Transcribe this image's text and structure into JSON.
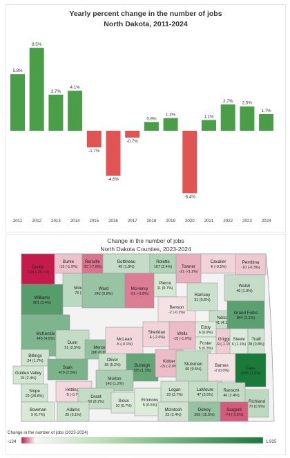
{
  "chart_data": [
    {
      "type": "bar",
      "title": "Yearly percent change in the number of jobs",
      "subtitle": "North Dakota, 2011-2024",
      "categories": [
        "2011",
        "2012",
        "2013",
        "2014",
        "2015",
        "2016",
        "2017",
        "2018",
        "2019",
        "2020",
        "2021",
        "2022",
        "2023",
        "2024"
      ],
      "values": [
        5.8,
        8.5,
        3.7,
        4.1,
        -1.7,
        -4.6,
        -0.7,
        0.9,
        1.3,
        -6.4,
        1.1,
        2.7,
        2.5,
        1.7
      ],
      "labels": [
        "5.8%",
        "8.5%",
        "3.7%",
        "4.1%",
        "-1.7%",
        "-4.6%",
        "-0.7%",
        "0.9%",
        "1.3%",
        "-6.4%",
        "1.1%",
        "2.7%",
        "2.5%",
        "1.7%"
      ],
      "ylim": [
        -7,
        9
      ],
      "colors": {
        "positive": "#4a9e47",
        "negative": "#e05454"
      }
    },
    {
      "type": "heatmap",
      "title": "Change in the number of jobs",
      "subtitle": "North Dakota Counties, 2023-2024",
      "legend": {
        "title": "Change in the number of jobs (2023-2024)",
        "min_label": "-124",
        "max_label": "1,925",
        "min": -124,
        "max": 1925
      },
      "counties": [
        {
          "name": "Divide",
          "value": -124,
          "label": "-124 (-15.1%)"
        },
        {
          "name": "Burke",
          "value": -13,
          "label": "-13 (-1.9%)"
        },
        {
          "name": "Renville",
          "value": -57,
          "label": "-57 (-7.8%)"
        },
        {
          "name": "Bottineau",
          "value": 45,
          "label": "45 (1.8%)"
        },
        {
          "name": "Rolette",
          "value": 107,
          "label": "107 (2.4%)"
        },
        {
          "name": "Towner",
          "value": -21,
          "label": "-21 (-3.1%)"
        },
        {
          "name": "Cavalier",
          "value": -6,
          "label": "-6 (-0.5%)"
        },
        {
          "name": "Pembina",
          "value": -10,
          "label": "-10 (-0.3%)"
        },
        {
          "name": "Williams",
          "value": 901,
          "label": "901 (3.4%)"
        },
        {
          "name": "Mountrail",
          "value": 75,
          "label": "75 (1.4%)"
        },
        {
          "name": "Ward",
          "value": 242,
          "label": "242 (0.8%)"
        },
        {
          "name": "McHenry",
          "value": -51,
          "label": "-51 (-3.8%)"
        },
        {
          "name": "Pierce",
          "value": 11,
          "label": "11 (0.7%)"
        },
        {
          "name": "Benson",
          "value": -2,
          "label": "-2 (-0.1%)"
        },
        {
          "name": "Ramsey",
          "value": 31,
          "label": "31 (0.6%)"
        },
        {
          "name": "Walsh",
          "value": 46,
          "label": "46 (1.0%)"
        },
        {
          "name": "Nelson",
          "value": 41,
          "label": "41 (4.1%)"
        },
        {
          "name": "Grand Forks",
          "value": 844,
          "label": "844 (2.1%)"
        },
        {
          "name": "McKenzie",
          "value": 445,
          "label": "445 (4.0%)"
        },
        {
          "name": "Dunn",
          "value": 51,
          "label": "51 (2.5%)"
        },
        {
          "name": "Mercer",
          "value": 286,
          "label": "286 (6.9%)"
        },
        {
          "name": "McLean",
          "value": -5,
          "label": "-5 (-0.1%)"
        },
        {
          "name": "Sheridan",
          "value": -6,
          "label": "-6 (-2.6%)"
        },
        {
          "name": "Wells",
          "value": -15,
          "label": "-15 (-1.0%)"
        },
        {
          "name": "Eddy",
          "value": 6,
          "label": "6 (0.9%)"
        },
        {
          "name": "Foster",
          "value": 5,
          "label": "5 (0.3%)"
        },
        {
          "name": "Griggs",
          "value": -9,
          "label": "-9 (-1.1%)"
        },
        {
          "name": "Steele",
          "value": 6,
          "label": "6 (1.1%)"
        },
        {
          "name": "Traill",
          "value": 28,
          "label": "28 (0.8%)"
        },
        {
          "name": "Billings",
          "value": 24,
          "label": "24 (1.7%)"
        },
        {
          "name": "Golden Valley",
          "value": 15,
          "label": "15 (2.4%)"
        },
        {
          "name": "Oliver",
          "value": 35,
          "label": "35 (5.2%)"
        },
        {
          "name": "Burleigh",
          "value": 725,
          "label": "725 (1.3%)"
        },
        {
          "name": "Kidder",
          "value": -15,
          "label": "-15 (-2.0%)"
        },
        {
          "name": "Stutsman",
          "value": 60,
          "label": "60 (0.5%)"
        },
        {
          "name": "Barnes",
          "value": -2,
          "label": "-2 (0.0%)"
        },
        {
          "name": "Cass",
          "value": 1925,
          "label": "1925 (1.5%)"
        },
        {
          "name": "Stark",
          "value": 479,
          "label": "479 (2.5%)"
        },
        {
          "name": "Morton",
          "value": 142,
          "label": "142 (1.2%)"
        },
        {
          "name": "Slope",
          "value": 22,
          "label": "22 (28.8%)"
        },
        {
          "name": "Hettinger",
          "value": -5,
          "label": "-5 (-0.7%)"
        },
        {
          "name": "Grant",
          "value": 50,
          "label": "50 (8.2%)"
        },
        {
          "name": "Sioux",
          "value": 10,
          "label": "10 (0.7%)"
        },
        {
          "name": "Emmons",
          "value": 5,
          "label": "5 (0.5%)"
        },
        {
          "name": "Logan",
          "value": 23,
          "label": "23 (3.7%)"
        },
        {
          "name": "LaMoure",
          "value": 47,
          "label": "47 (3.5%)"
        },
        {
          "name": "Ransom",
          "value": 46,
          "label": "46 (2.4%)"
        },
        {
          "name": "Richland",
          "value": 70,
          "label": "70 (0.9%)"
        },
        {
          "name": "Bowman",
          "value": 9,
          "label": "9 (0.7%)"
        },
        {
          "name": "Adams",
          "value": 25,
          "label": "25 (3.1%)"
        },
        {
          "name": "McIntosh",
          "value": 23,
          "label": "23 (2.4%)"
        },
        {
          "name": "Dickey",
          "value": 265,
          "label": "265 (15.5%)"
        },
        {
          "name": "Sargent",
          "value": -74,
          "label": "-74 (-2.6%)"
        }
      ]
    }
  ]
}
